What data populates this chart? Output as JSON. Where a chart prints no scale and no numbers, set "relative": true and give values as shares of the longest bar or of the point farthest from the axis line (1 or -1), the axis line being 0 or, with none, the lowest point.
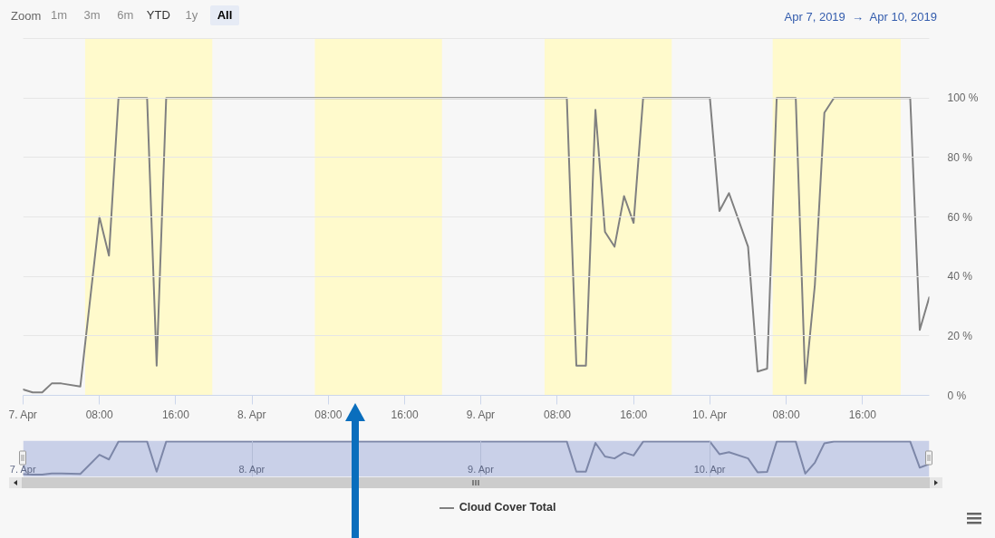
{
  "chart_data": [
    {
      "type": "line",
      "x": [
        "2019-04-07T00:00",
        "2019-04-07T01:00",
        "2019-04-07T02:00",
        "2019-04-07T03:00",
        "2019-04-07T04:00",
        "2019-04-07T06:00",
        "2019-04-07T08:00",
        "2019-04-07T09:00",
        "2019-04-07T10:00",
        "2019-04-07T13:00",
        "2019-04-07T14:00",
        "2019-04-07T15:00",
        "2019-04-09T09:00",
        "2019-04-09T10:00",
        "2019-04-09T11:00",
        "2019-04-09T12:00",
        "2019-04-09T13:00",
        "2019-04-09T14:00",
        "2019-04-09T15:00",
        "2019-04-09T16:00",
        "2019-04-09T17:00",
        "2019-04-10T00:00",
        "2019-04-10T01:00",
        "2019-04-10T02:00",
        "2019-04-10T04:00",
        "2019-04-10T05:00",
        "2019-04-10T06:00",
        "2019-04-10T07:00",
        "2019-04-10T09:00",
        "2019-04-10T10:00",
        "2019-04-10T11:00",
        "2019-04-10T12:00",
        "2019-04-10T13:00",
        "2019-04-10T21:00",
        "2019-04-10T22:00",
        "2019-04-10T23:00"
      ],
      "series": [
        {
          "name": "Cloud Cover Total",
          "color": "#808080",
          "values": [
            2,
            1,
            1,
            4,
            4,
            3,
            60,
            47,
            100,
            100,
            10,
            100,
            100,
            10,
            10,
            96,
            55,
            50,
            67,
            58,
            100,
            100,
            62,
            68,
            50,
            8,
            9,
            100,
            100,
            4,
            37,
            95,
            100,
            100,
            22,
            33
          ]
        }
      ],
      "xlim": [
        "2019-04-07T00:00",
        "2019-04-10T23:00"
      ],
      "xticks": [
        {
          "value": "2019-04-07T00:00",
          "label": "7. Apr"
        },
        {
          "value": "2019-04-07T08:00",
          "label": "08:00"
        },
        {
          "value": "2019-04-07T16:00",
          "label": "16:00"
        },
        {
          "value": "2019-04-08T00:00",
          "label": "8. Apr"
        },
        {
          "value": "2019-04-08T08:00",
          "label": "08:00"
        },
        {
          "value": "2019-04-08T16:00",
          "label": "16:00"
        },
        {
          "value": "2019-04-09T00:00",
          "label": "9. Apr"
        },
        {
          "value": "2019-04-09T08:00",
          "label": "08:00"
        },
        {
          "value": "2019-04-09T16:00",
          "label": "16:00"
        },
        {
          "value": "2019-04-10T00:00",
          "label": "10. Apr"
        },
        {
          "value": "2019-04-10T08:00",
          "label": "08:00"
        },
        {
          "value": "2019-04-10T16:00",
          "label": "16:00"
        }
      ],
      "ylim": [
        0,
        120
      ],
      "yticks": [
        {
          "value": 0,
          "label": "0 %"
        },
        {
          "value": 20,
          "label": "20 %"
        },
        {
          "value": 40,
          "label": "40 %"
        },
        {
          "value": 60,
          "label": "60 %"
        },
        {
          "value": 80,
          "label": "80 %"
        },
        {
          "value": 100,
          "label": "100 %"
        },
        {
          "value": 120,
          "label": null
        }
      ],
      "grid": "y",
      "legend": "bottom",
      "bands": [
        {
          "axis": "x",
          "from": "2019-04-07T06:30",
          "to": "2019-04-07T19:50",
          "color": "#fffacc"
        },
        {
          "axis": "x",
          "from": "2019-04-08T06:35",
          "to": "2019-04-08T19:55",
          "color": "#fffacc"
        },
        {
          "axis": "x",
          "from": "2019-04-09T06:40",
          "to": "2019-04-09T20:00",
          "color": "#fffacc"
        },
        {
          "axis": "x",
          "from": "2019-04-10T06:35",
          "to": "2019-04-10T20:00",
          "color": "#fffacc"
        }
      ],
      "annotations": [
        "Zoom",
        "1m",
        "3m",
        "6m",
        "YTD",
        "1y",
        "All",
        "Apr 7, 2019 → Apr 10, 2019"
      ]
    },
    {
      "type": "line",
      "x": [
        "2019-04-07T00:00",
        "2019-04-07T01:00",
        "2019-04-07T02:00",
        "2019-04-07T03:00",
        "2019-04-07T04:00",
        "2019-04-07T06:00",
        "2019-04-07T08:00",
        "2019-04-07T09:00",
        "2019-04-07T10:00",
        "2019-04-07T13:00",
        "2019-04-07T14:00",
        "2019-04-07T15:00",
        "2019-04-09T09:00",
        "2019-04-09T10:00",
        "2019-04-09T11:00",
        "2019-04-09T12:00",
        "2019-04-09T13:00",
        "2019-04-09T14:00",
        "2019-04-09T15:00",
        "2019-04-09T16:00",
        "2019-04-09T17:00",
        "2019-04-10T00:00",
        "2019-04-10T01:00",
        "2019-04-10T02:00",
        "2019-04-10T04:00",
        "2019-04-10T05:00",
        "2019-04-10T06:00",
        "2019-04-10T07:00",
        "2019-04-10T09:00",
        "2019-04-10T10:00",
        "2019-04-10T11:00",
        "2019-04-10T12:00",
        "2019-04-10T13:00",
        "2019-04-10T21:00",
        "2019-04-10T22:00",
        "2019-04-10T23:00"
      ],
      "values": [
        0.01,
        0,
        0,
        0.03,
        0.03,
        0.02,
        0.6,
        0.46,
        1,
        1,
        0.09,
        1,
        1,
        0.09,
        0.09,
        0.96,
        0.55,
        0.49,
        0.67,
        0.58,
        1,
        1,
        0.62,
        0.68,
        0.49,
        0.07,
        0.08,
        1,
        1,
        0.03,
        0.36,
        0.95,
        1,
        1,
        0.21,
        0.32
      ],
      "color": "#7d87a8",
      "relative": true,
      "xlim": [
        "2019-04-07T00:00",
        "2019-04-10T23:00"
      ],
      "xticks": [
        {
          "value": "2019-04-07T00:00",
          "label": "7. Apr"
        },
        {
          "value": "2019-04-08T00:00",
          "label": "8. Apr"
        },
        {
          "value": "2019-04-09T00:00",
          "label": "9. Apr"
        },
        {
          "value": "2019-04-10T00:00",
          "label": "10. Apr"
        }
      ],
      "grid": "x",
      "bands": [
        {
          "axis": "x",
          "from": "2019-04-07T00:00",
          "to": "2019-04-10T23:00",
          "color": "#c9d0e8"
        }
      ]
    }
  ]
}
